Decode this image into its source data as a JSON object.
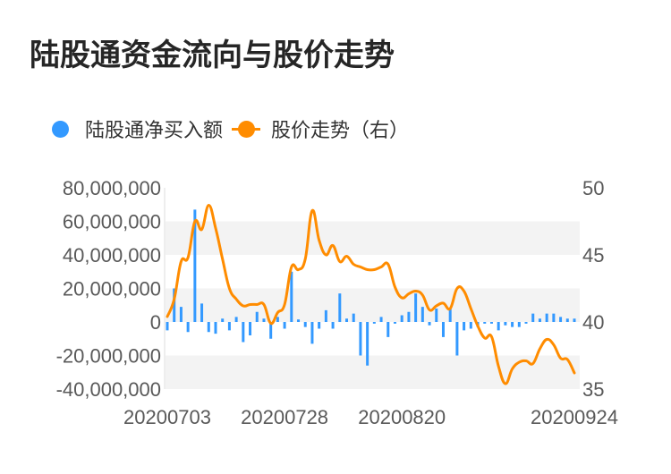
{
  "title": "陆股通资金流向与股价走势",
  "legend": {
    "items": [
      {
        "label": "陆股通净买入额",
        "color": "#3399ff",
        "type": "dot"
      },
      {
        "label": "股价走势（右）",
        "color": "#ff8c00",
        "type": "line"
      }
    ]
  },
  "colors": {
    "bar": "#3399ff",
    "line": "#ff8c00",
    "band": "#f3f3f3",
    "axis_text": "#595959",
    "axis_line": "#eeeeee"
  },
  "chart_data": {
    "type": "bar+line",
    "title": "陆股通资金流向与股价走势",
    "xlabel": "",
    "ylabel": "陆股通净买入额",
    "ylabel_right": "股价走势（右）",
    "ylim": [
      -40000000,
      80000000
    ],
    "ylim_right": [
      35,
      50
    ],
    "yticks": [
      80000000,
      60000000,
      40000000,
      20000000,
      0,
      -20000000,
      -40000000
    ],
    "ytick_labels": [
      "80,000,000",
      "60,000,000",
      "40,000,000",
      "20,000,000",
      "0",
      "-20,000,000",
      "-40,000,000"
    ],
    "yticks_right": [
      50,
      45,
      40,
      35
    ],
    "ytick_labels_right": [
      "50",
      "45",
      "40",
      "35"
    ],
    "xtick_labels": [
      {
        "label": "20200703",
        "index": 0
      },
      {
        "label": "20200728",
        "index": 17
      },
      {
        "label": "20200820",
        "index": 34
      },
      {
        "label": "20200924",
        "index": 59
      }
    ],
    "grid": "alternating-bands",
    "legend_position": "top-left",
    "series": [
      {
        "name": "陆股通净买入额",
        "type": "bar",
        "axis": "left",
        "values": [
          -5000000,
          20000000,
          9000000,
          -6000000,
          67000000,
          11000000,
          -6000000,
          -7000000,
          2000000,
          -5000000,
          3000000,
          -12000000,
          -8000000,
          6000000,
          2000000,
          -10000000,
          3000000,
          -4000000,
          30000000,
          1500000,
          -3000000,
          -13000000,
          -4000000,
          7000000,
          -4000000,
          17000000,
          2000000,
          5000000,
          -20000000,
          -26000000,
          -1000000,
          3000000,
          -9000000,
          -1000000,
          4000000,
          6000000,
          17000000,
          9000000,
          -2000000,
          8000000,
          -9000000,
          8000000,
          -20000000,
          -5000000,
          -4000000,
          -3000000,
          -1000000,
          -1000000,
          -5000000,
          -2000000,
          -3000000,
          -3000000,
          -1000000,
          5000000,
          2000000,
          5000000,
          5000000,
          3000000,
          2000000,
          2000000
        ]
      },
      {
        "name": "股价走势（右）",
        "type": "line",
        "axis": "right",
        "values": [
          40.4,
          41.7,
          44.5,
          44.8,
          47.5,
          46.9,
          48.7,
          47.0,
          44.7,
          42.5,
          41.7,
          41.2,
          41.3,
          41.3,
          41.3,
          39.9,
          40.7,
          41.3,
          44.1,
          43.9,
          44.7,
          48.3,
          46.1,
          45.0,
          45.7,
          44.5,
          44.9,
          44.3,
          44.1,
          43.9,
          43.9,
          44.1,
          44.3,
          42.6,
          41.8,
          42.1,
          42.3,
          42.0,
          40.9,
          41.2,
          41.4,
          41.0,
          42.5,
          42.3,
          41.0,
          39.7,
          38.8,
          38.9,
          36.7,
          35.4,
          36.5,
          37.0,
          37.1,
          36.9,
          38.0,
          38.7,
          38.3,
          37.3,
          37.2,
          36.2
        ]
      }
    ]
  }
}
